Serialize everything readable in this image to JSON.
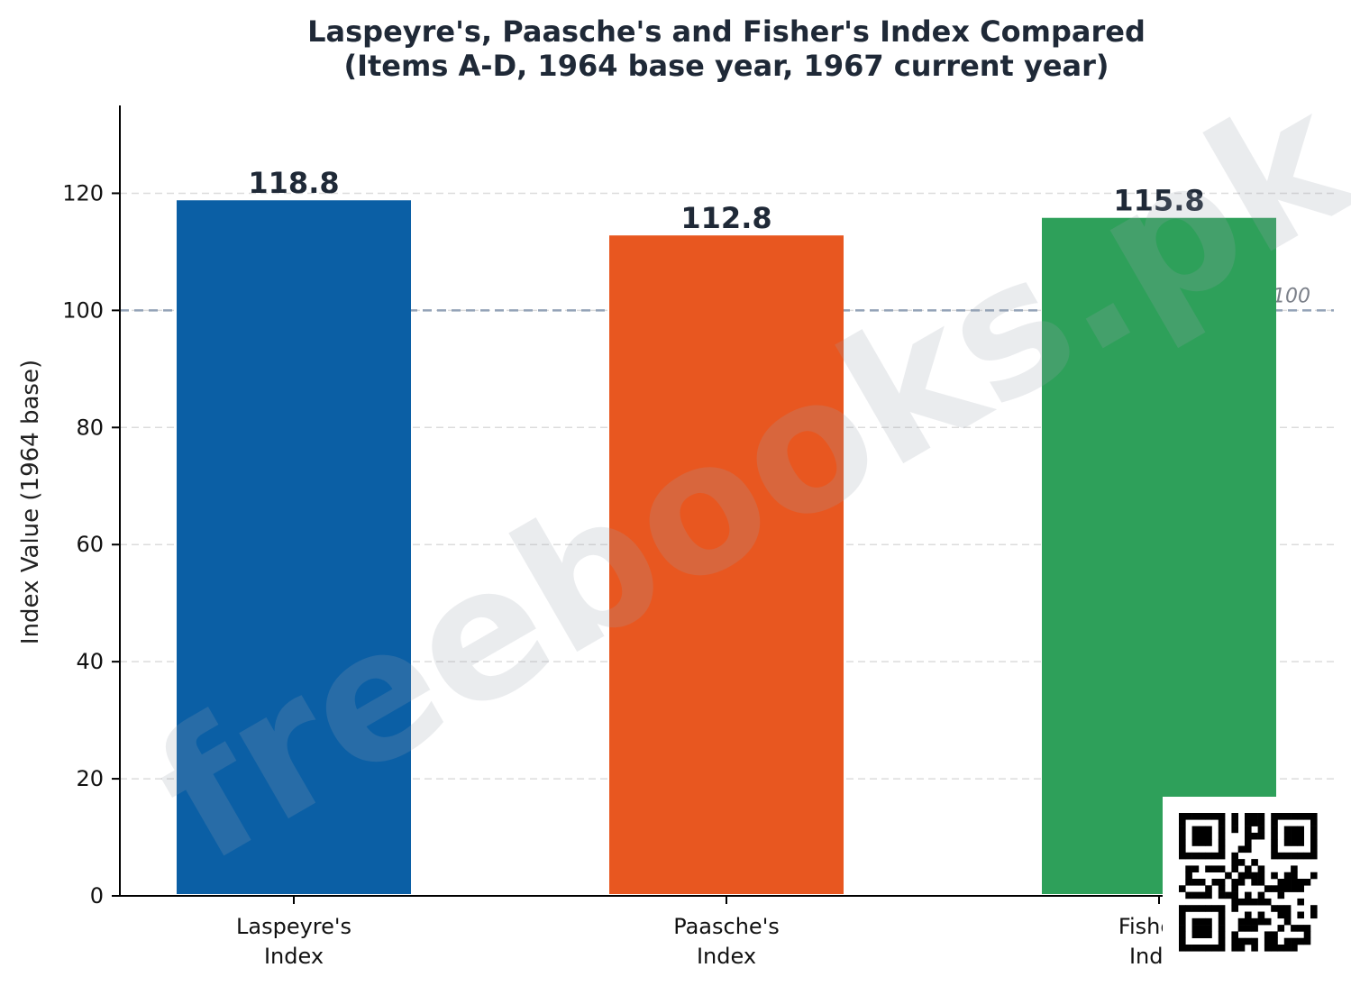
{
  "chart_data": {
    "type": "bar",
    "title": [
      "Laspeyre's, Paasche's and Fisher's Index Compared",
      "(Items A-D, 1964 base year, 1967 current year)"
    ],
    "categories": [
      [
        "Laspeyre's",
        "Index"
      ],
      [
        "Paasche's",
        "Index"
      ],
      [
        "Fisher's",
        "Index"
      ]
    ],
    "values": [
      118.8,
      112.8,
      115.8
    ],
    "value_labels": [
      "118.8",
      "112.8",
      "115.8"
    ],
    "colors": [
      "#0b5fa5",
      "#e85720",
      "#2ea05a"
    ],
    "ylabel": "Index Value (1964 base)",
    "xlabel": "",
    "ylim": [
      0,
      135
    ],
    "yticks": [
      0,
      20,
      40,
      60,
      80,
      100,
      120
    ],
    "grid": true,
    "reference_line": {
      "value": 100,
      "label": "Base year = 100",
      "color": "#94a3b8"
    }
  },
  "watermark": {
    "text": "freebooks.pk"
  },
  "qr_code": {
    "icon": "qr-code-icon"
  }
}
